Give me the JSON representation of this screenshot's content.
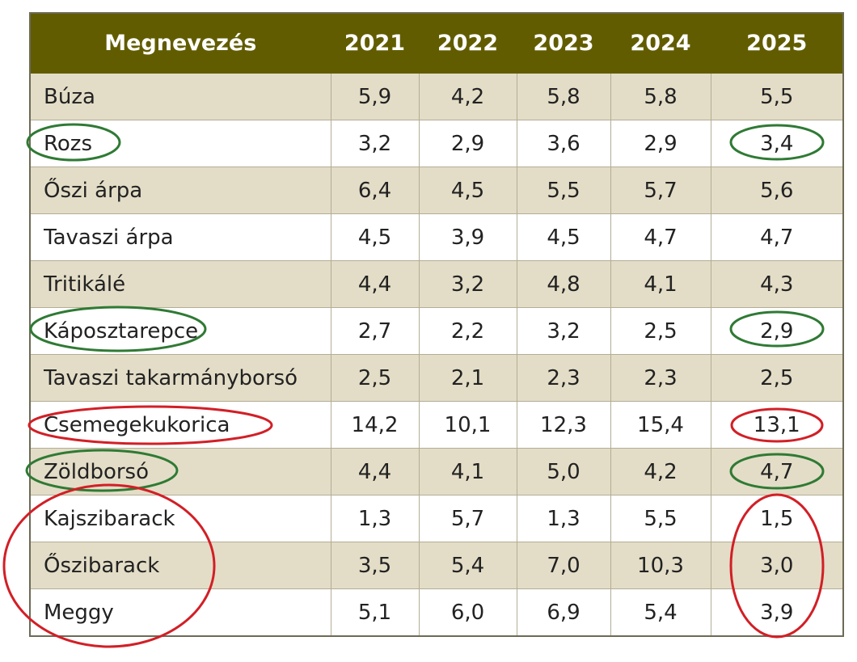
{
  "table": {
    "headers": [
      "Megnevezés",
      "2021",
      "2022",
      "2023",
      "2024",
      "2025"
    ],
    "rows": [
      {
        "name": "Búza",
        "values": [
          "5,9",
          "4,2",
          "5,8",
          "5,8",
          "5,5"
        ]
      },
      {
        "name": "Rozs",
        "values": [
          "3,2",
          "2,9",
          "3,6",
          "2,9",
          "3,4"
        ]
      },
      {
        "name": "Őszi árpa",
        "values": [
          "6,4",
          "4,5",
          "5,5",
          "5,7",
          "5,6"
        ]
      },
      {
        "name": "Tavaszi árpa",
        "values": [
          "4,5",
          "3,9",
          "4,5",
          "4,7",
          "4,7"
        ]
      },
      {
        "name": "Tritikálé",
        "values": [
          "4,4",
          "3,2",
          "4,8",
          "4,1",
          "4,3"
        ]
      },
      {
        "name": "Káposztarepce",
        "values": [
          "2,7",
          "2,2",
          "3,2",
          "2,5",
          "2,9"
        ]
      },
      {
        "name": "Tavaszi takarmányborsó",
        "values": [
          "2,5",
          "2,1",
          "2,3",
          "2,3",
          "2,5"
        ]
      },
      {
        "name": "Csemegekukorica",
        "values": [
          "14,2",
          "10,1",
          "12,3",
          "15,4",
          "13,1"
        ]
      },
      {
        "name": "Zöldborsó",
        "values": [
          "4,4",
          "4,1",
          "5,0",
          "4,2",
          "4,7"
        ]
      },
      {
        "name": "Kajszibarack",
        "values": [
          "1,3",
          "5,7",
          "1,3",
          "5,5",
          "1,5"
        ]
      },
      {
        "name": "Őszibarack",
        "values": [
          "3,5",
          "5,4",
          "7,0",
          "10,3",
          "3,0"
        ]
      },
      {
        "name": "Meggy",
        "values": [
          "5,1",
          "6,0",
          "6,9",
          "5,4",
          "3,9"
        ]
      }
    ]
  },
  "colors": {
    "header_bg": "#625c00",
    "shade_row": "#e3ddc7",
    "green_mark": "#2f7a34",
    "red_mark": "#d21f26"
  },
  "annotations": [
    {
      "color": "green",
      "rows": [
        "Rozs"
      ],
      "cells": [
        "name",
        "2025"
      ]
    },
    {
      "color": "green",
      "rows": [
        "Káposztarepce"
      ],
      "cells": [
        "name",
        "2025"
      ]
    },
    {
      "color": "red",
      "rows": [
        "Csemegekukorica"
      ],
      "cells": [
        "name",
        "2025"
      ]
    },
    {
      "color": "green",
      "rows": [
        "Zöldborsó"
      ],
      "cells": [
        "name",
        "2025"
      ]
    },
    {
      "color": "red",
      "rows": [
        "Kajszibarack",
        "Őszibarack",
        "Meggy"
      ],
      "cells": [
        "name",
        "2025"
      ]
    }
  ]
}
